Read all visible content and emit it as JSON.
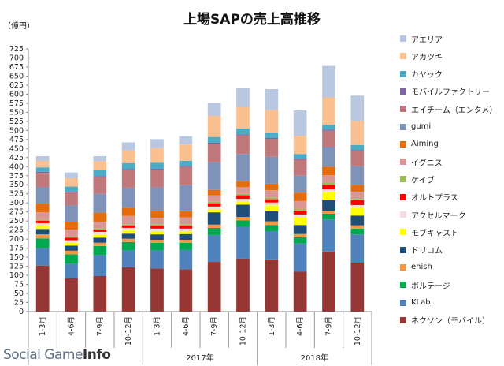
{
  "chart_data": {
    "type": "bar",
    "stacked": true,
    "title": "上場SAPの売上高推移",
    "unit_label": "（億円）",
    "ylim": [
      0,
      725
    ],
    "y_step": 25,
    "grid": false,
    "legend_position": "right",
    "categories": [
      "1-3月",
      "4-6月",
      "7-9月",
      "10-12月",
      "1-3月",
      "4-6月",
      "7-9月",
      "10-12月",
      "1-3月",
      "4-6月",
      "7-9月",
      "10-12月"
    ],
    "year_groups": [
      {
        "label": "",
        "start": 0,
        "end": 3
      },
      {
        "label": "2017年",
        "start": 4,
        "end": 7
      },
      {
        "label": "2018年",
        "start": 8,
        "end": 11
      }
    ],
    "series": [
      {
        "name": "ネクソン（モバイル）",
        "color": "#953735",
        "values": [
          127,
          92,
          98,
          122,
          119,
          117,
          137,
          146,
          144,
          110,
          166,
          135
        ]
      },
      {
        "name": "KLab",
        "color": "#4f81bd",
        "values": [
          48,
          40,
          58,
          47,
          50,
          53,
          74,
          88,
          78,
          78,
          88,
          78
        ]
      },
      {
        "name": "ボルテージ",
        "color": "#00a84f",
        "values": [
          27,
          26,
          25,
          23,
          21,
          20,
          20,
          18,
          17,
          17,
          16,
          16
        ]
      },
      {
        "name": "enish",
        "color": "#f79646",
        "values": [
          11,
          10,
          9,
          9,
          8,
          8,
          9,
          9,
          10,
          9,
          8,
          9
        ]
      },
      {
        "name": "ドリコム",
        "color": "#1f4e79",
        "values": [
          15,
          14,
          14,
          14,
          15,
          16,
          34,
          34,
          28,
          25,
          29,
          27
        ]
      },
      {
        "name": "モブキャスト",
        "color": "#ffff00",
        "values": [
          9,
          9,
          9,
          9,
          9,
          8,
          8,
          8,
          16,
          21,
          22,
          21
        ]
      },
      {
        "name": "アクセルマーク",
        "color": "#f2dcdb",
        "values": [
          7,
          6,
          7,
          7,
          7,
          7,
          8,
          8,
          8,
          8,
          8,
          8
        ]
      },
      {
        "name": "オルトプラス",
        "color": "#ff0000",
        "values": [
          7,
          7,
          7,
          7,
          8,
          8,
          9,
          10,
          9,
          11,
          13,
          13
        ]
      },
      {
        "name": "ケイブ",
        "color": "#9bbb59",
        "values": [
          3,
          3,
          3,
          3,
          4,
          4,
          4,
          4,
          5,
          5,
          5,
          4
        ]
      },
      {
        "name": "イグニス",
        "color": "#d99694",
        "values": [
          20,
          19,
          18,
          23,
          18,
          19,
          18,
          19,
          20,
          21,
          21,
          20
        ]
      },
      {
        "name": "Aiming",
        "color": "#e46c0a",
        "values": [
          24,
          22,
          25,
          22,
          19,
          17,
          15,
          16,
          18,
          23,
          24,
          19
        ]
      },
      {
        "name": "gumi",
        "color": "#7f93b8",
        "values": [
          46,
          45,
          52,
          56,
          65,
          72,
          76,
          75,
          74,
          47,
          55,
          51
        ]
      },
      {
        "name": "エイチーム（エンタメ）",
        "color": "#c0797a",
        "values": [
          39,
          35,
          46,
          48,
          48,
          50,
          51,
          51,
          49,
          44,
          44,
          42
        ]
      },
      {
        "name": "モバイルファクトリー",
        "color": "#8064a2",
        "values": [
          3,
          3,
          3,
          3,
          3,
          3,
          3,
          3,
          3,
          3,
          3,
          3
        ]
      },
      {
        "name": "カヤック",
        "color": "#4bacc6",
        "values": [
          12,
          14,
          16,
          17,
          17,
          14,
          16,
          16,
          15,
          13,
          14,
          14
        ]
      },
      {
        "name": "アカツキ",
        "color": "#fac090",
        "values": [
          18,
          23,
          25,
          35,
          40,
          45,
          58,
          59,
          62,
          50,
          75,
          66
        ]
      },
      {
        "name": "アエリア",
        "color": "#b9c7e0",
        "values": [
          13,
          16,
          14,
          22,
          25,
          23,
          36,
          52,
          58,
          70,
          87,
          70
        ]
      }
    ]
  },
  "brand": {
    "text1": "Social Game",
    "text2": "Info"
  }
}
